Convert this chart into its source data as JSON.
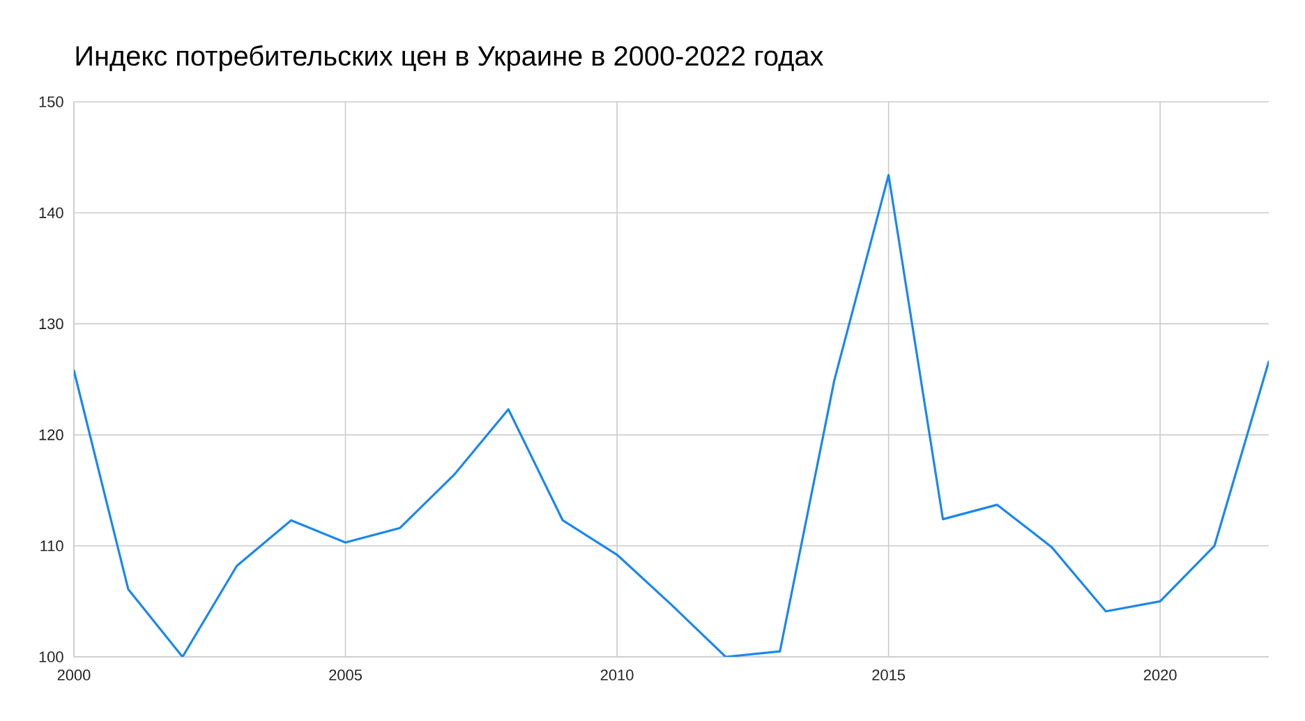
{
  "chart_data": {
    "type": "line",
    "title": "Индекс потребительских цен в Украине в 2000-2022 годах",
    "x": [
      2000,
      2001,
      2002,
      2003,
      2004,
      2005,
      2006,
      2007,
      2008,
      2009,
      2010,
      2011,
      2012,
      2013,
      2014,
      2015,
      2016,
      2017,
      2018,
      2019,
      2020,
      2021,
      2022
    ],
    "series": [
      {
        "color": "#1a87ee",
        "values": [
          125.8,
          106.1,
          100,
          108.2,
          112.3,
          110.3,
          111.6,
          116.4,
          122.3,
          112.3,
          109.2,
          104.7,
          100,
          100.5,
          124.9,
          143.4,
          112.4,
          113.7,
          109.9,
          104.1,
          105.0,
          110.0,
          126.6
        ]
      }
    ],
    "xlim": [
      2000,
      2022
    ],
    "xticks": [
      2000,
      2005,
      2010,
      2015,
      2020
    ],
    "ylim": [
      100,
      150
    ],
    "yticks": [
      100,
      110,
      120,
      130,
      140,
      150
    ],
    "grid": true,
    "marker": "none",
    "line_style": "solid"
  }
}
